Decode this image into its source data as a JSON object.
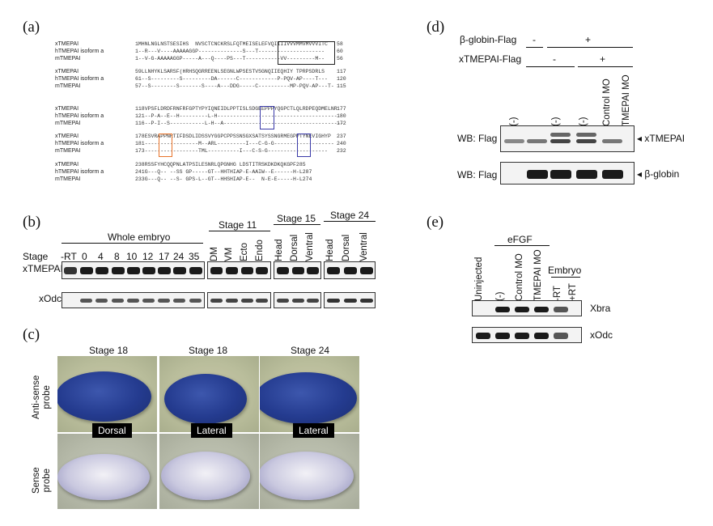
{
  "panel_a": {
    "label": "(a)",
    "blocks": [
      {
        "names": [
          "xTMEPAI",
          "hTMEPAI isoform a",
          "mTMEPAI"
        ],
        "seqs": [
          "1MHNLNGLNSTSESIHS  NVSCTCNCKRSLFQTMEISELEFVQIIIIVVVMMVMVVVITC",
          "1--R---V----AAAAAGGP--------------S---T---------------------",
          "1--V-G-AAAAAGGP-----A---Q----PS---T-----------VV---------M--"
        ],
        "ends": [
          "58",
          "60",
          "56"
        ]
      },
      {
        "names": [
          "xTMEPAI",
          "hTMEPAI isoform a",
          "mTMEPAI"
        ],
        "seqs": [
          "59LLNHYKLSARSF(HRHSQGRREENLSEGNLWPSESTVSGNQIIEQHIY TPRPSDRLS",
          "61--S---------S---------DA------C------------P-PQV-AP----T---",
          "57--S--------S-------S----A---DDG-----C----------MP-PQV-AP---T-"
        ],
        "ends": [
          "117",
          "120",
          "115"
        ]
      },
      {
        "names": [
          "xTMEPAI",
          "hTMEPAI isoform a",
          "mTMEPAI"
        ],
        "seqs": [
          "118VPSFLDRDFRNFRFGPTYPYIQNEIDLPPTISLSDGEEPPPYQGPCTLQLRDPEQDMELNR",
          "121--P-A--E--H---------L-H--------------------------------------",
          "116--P-I--S-----------L-H--A--------------------------------------"
        ],
        "ends": [
          "177",
          "180",
          "172"
        ]
      },
      {
        "names": [
          "xTMEPAI",
          "hTMEPAI isoform a",
          "mTMEPAI"
        ],
        "seqs": [
          "178ESVRAPPNRTIFDSDLIDSSVYGGPCPPSSNSGXSATSYSSNGRMEGPPTYNEVIGHYP",
          "181-----------------M--ARL---------I---C-G-G-------------------",
          "173-----------------TML----------I---C-S-G-------------------"
        ],
        "ends": [
          "237",
          "240",
          "232"
        ]
      },
      {
        "names": [
          "xTMEPAI",
          "hTMEPAI isoform a",
          "mTMEPAI"
        ],
        "seqs": [
          "238RSSFYHCQQPNLATPSILESNRLQPGNHG LDSTITRSKDKDKQKGPF285",
          "241G---Q-- --SS GP-----GT--HHTHIAP-E-AAIW--E------H-L287",
          "233G---Q-- --S- GPS-L--GT--HHSHIAP-E--  N-E-E-----H-L274"
        ],
        "ends": [
          "",
          "",
          ""
        ]
      }
    ]
  },
  "panel_b": {
    "label": "(b)",
    "row_header": "Stage",
    "groups": [
      {
        "title": "Whole embryo",
        "lanes": [
          "-RT",
          "0",
          "4",
          "8",
          "10",
          "12",
          "17",
          "24",
          "35"
        ]
      },
      {
        "title": "Stage 11",
        "lanes": [
          "DM",
          "VM",
          "Ecto",
          "Endo"
        ]
      },
      {
        "title": "Stage 15",
        "lanes": [
          "Head",
          "Dorsal",
          "Ventral"
        ]
      },
      {
        "title": "Stage 24",
        "lanes": [
          "Head",
          "Dorsal",
          "Ventral"
        ]
      }
    ],
    "genes": [
      "xTMEPAI",
      "xOdc"
    ]
  },
  "panel_c": {
    "label": "(c)",
    "columns": [
      "Stage 18",
      "Stage 18",
      "Stage 24"
    ],
    "rows": [
      "Anti-sense probe",
      "Sense probe"
    ],
    "row_lines": [
      [
        "Anti-sense",
        "probe"
      ],
      [
        "Sense",
        "probe"
      ]
    ],
    "views": [
      "Dorsal",
      "Lateral",
      "Lateral"
    ]
  },
  "panel_d": {
    "label": "(d)",
    "row1_label": "β-globin-Flag",
    "row1_values": [
      "-",
      "+"
    ],
    "row2_label": "xTMEPAI-Flag",
    "row2_values": [
      "-",
      "+"
    ],
    "lanes": [
      "(-)",
      "(-)",
      "(-)",
      "Control MO",
      "TMEPAI MO"
    ],
    "blots": [
      {
        "label": "WB: Flag",
        "band": "◂ xTMEPAI"
      },
      {
        "label": "WB: Flag",
        "band": "◂ β-globin"
      }
    ]
  },
  "panel_e": {
    "label": "(e)",
    "group1": "eFGF",
    "group2": "Embryo",
    "lanes": [
      "Uninjected",
      "(-)",
      "Control MO",
      "TMEPAI MO",
      "-RT",
      "+RT"
    ],
    "genes": [
      "Xbra",
      "xOdc"
    ]
  }
}
